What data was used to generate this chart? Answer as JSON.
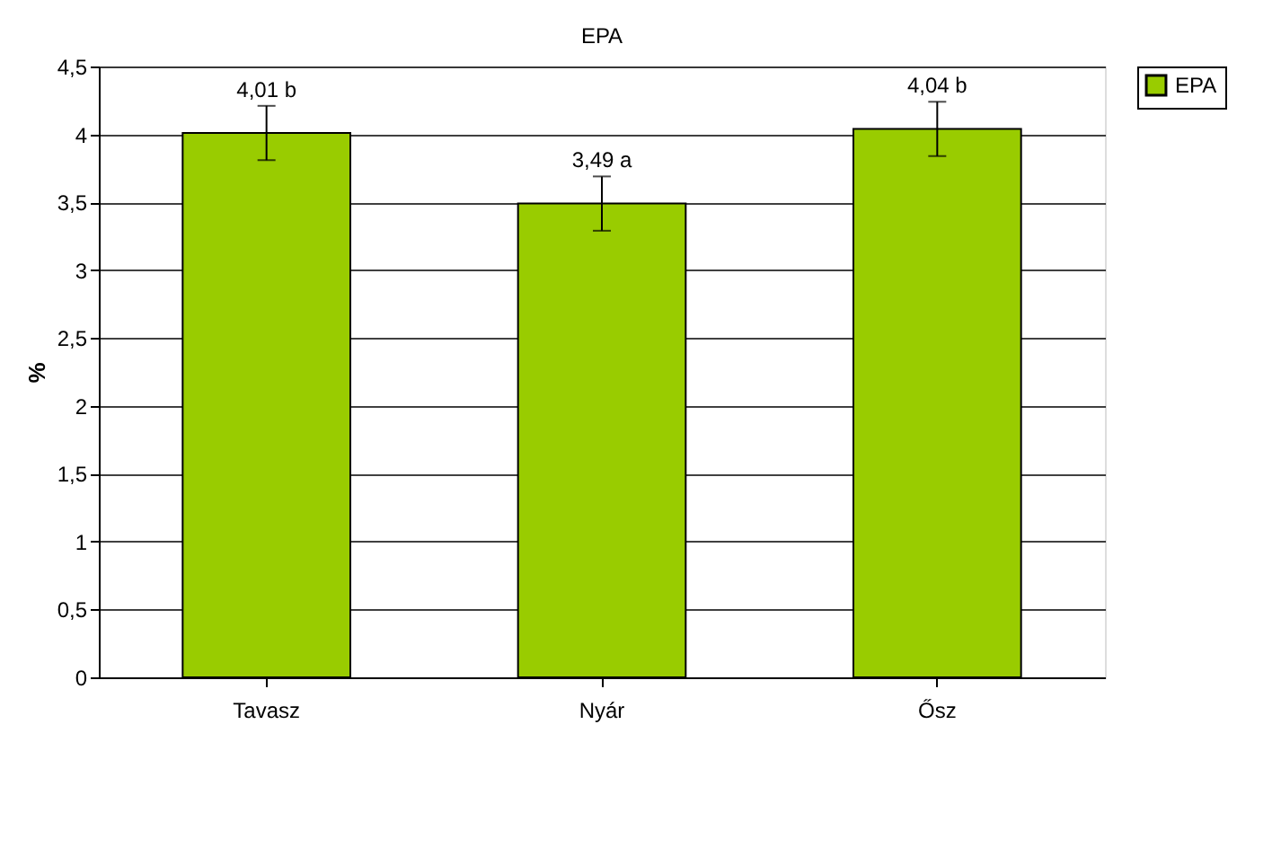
{
  "chart_data": {
    "type": "bar",
    "title": "EPA",
    "ylabel": "%",
    "categories": [
      "Tavasz",
      "Nyár",
      "Ősz"
    ],
    "series": [
      {
        "name": "EPA",
        "color": "#99cc00",
        "values": [
          4.01,
          3.49,
          4.04
        ],
        "errors": [
          0.2,
          0.2,
          0.2
        ],
        "value_labels": [
          "4,01 b",
          "3,49 a",
          "4,04 b"
        ]
      }
    ],
    "ylim": [
      0,
      4.5
    ],
    "yticks": [
      0,
      {
        "value": 0.5,
        "label": "0,5"
      },
      1,
      {
        "value": 1.5,
        "label": "1,5"
      },
      2,
      {
        "value": 2.5,
        "label": "2,5"
      },
      3,
      {
        "value": 3.5,
        "label": "3,5"
      },
      4,
      {
        "value": 4.5,
        "label": "4,5"
      }
    ],
    "grid": "y",
    "legend": "right"
  }
}
